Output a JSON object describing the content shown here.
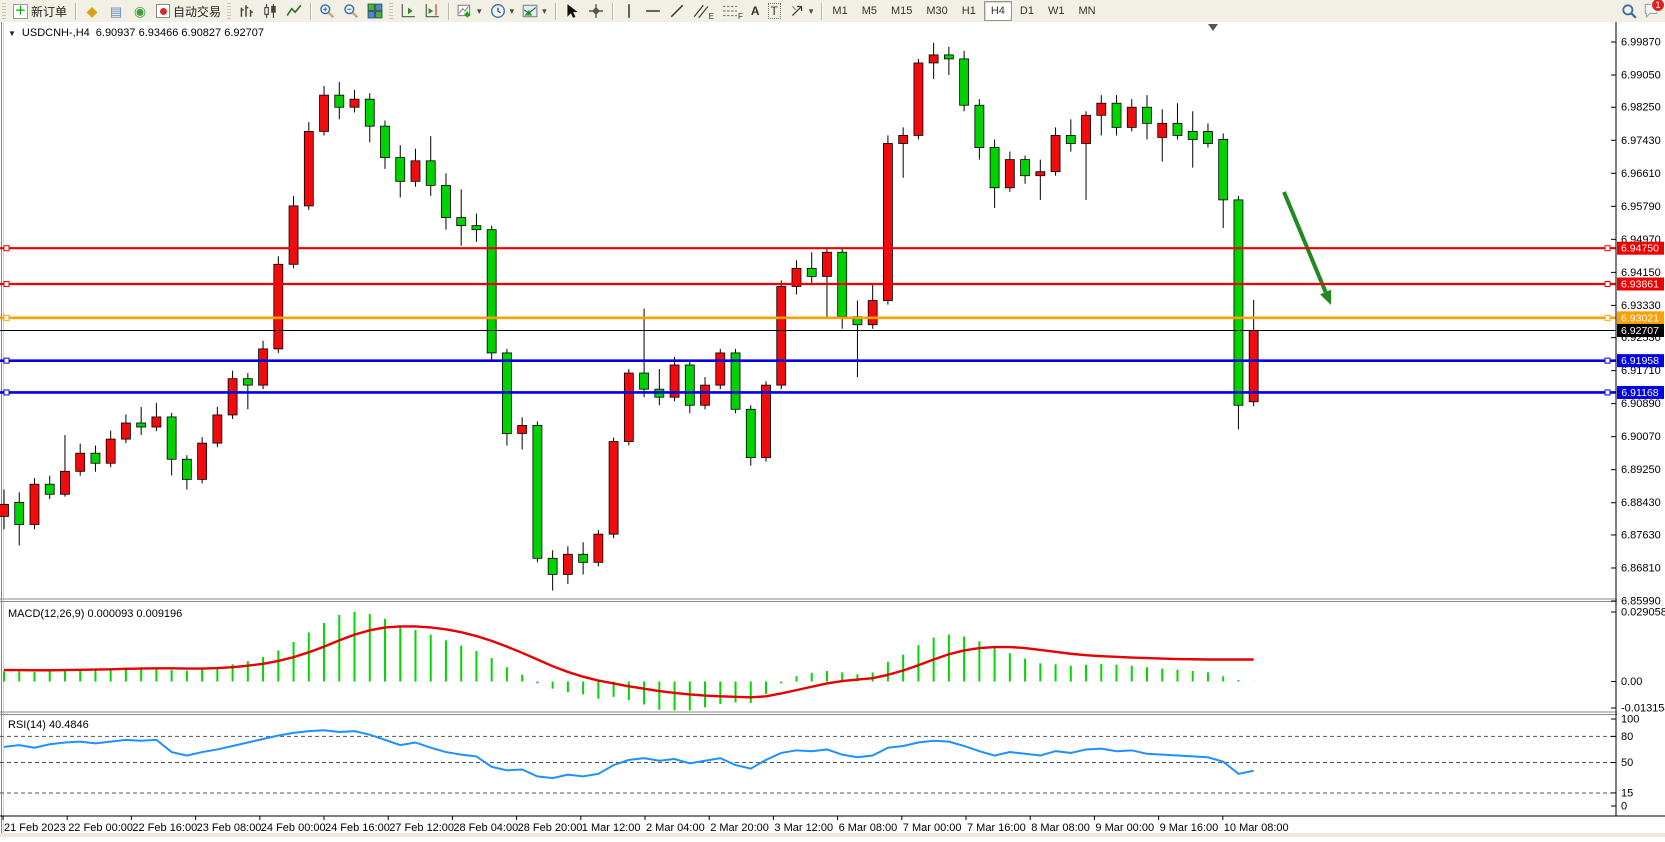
{
  "toolbar": {
    "new_order": "新订单",
    "autotrade": "自动交易",
    "tool_letters": {
      "channel": "E",
      "fibonacci": "F",
      "text": "A",
      "label": "T"
    },
    "timeframes": [
      "M1",
      "M5",
      "M15",
      "M30",
      "H1",
      "H4",
      "D1",
      "W1",
      "MN"
    ],
    "active_timeframe": "H4",
    "notification_count": "1"
  },
  "chart": {
    "collapse_marker": "▼",
    "symbol_period": "USDCNH-,H4",
    "ohlc": "6.90937 6.93466 6.90827 6.92707",
    "open": "6.90937",
    "high": "6.93466",
    "low": "6.90827",
    "close": "6.92707"
  },
  "indicators": {
    "macd_display": "MACD(12,26,9) 0.000093 0.009196",
    "rsi_display": "RSI(14) 40.4846"
  },
  "chart_data": {
    "type": "candlestick",
    "symbol": "USDCNH-",
    "timeframe": "H4",
    "colors": {
      "bull": "#f00c0c",
      "bear": "#00d200",
      "wick": "#000000",
      "macd_hist": "#00d800",
      "macd_signal": "#e60000",
      "rsi_line": "#1e90ff",
      "arrow": "#1f8a1f"
    },
    "price_range": {
      "max": 6.9987,
      "min": 6.8599
    },
    "price_ticks": [
      "6.99870",
      "6.99050",
      "6.98250",
      "6.97430",
      "6.96610",
      "6.95790",
      "6.94970",
      "6.94150",
      "6.93330",
      "6.92530",
      "6.91710",
      "6.90890",
      "6.90070",
      "6.89250",
      "6.88430",
      "6.87630",
      "6.86810",
      "6.85990"
    ],
    "time_labels": [
      "21 Feb 2023",
      "22 Feb 00:00",
      "22 Feb 16:00",
      "23 Feb 08:00",
      "24 Feb 00:00",
      "24 Feb 16:00",
      "27 Feb 12:00",
      "28 Feb 04:00",
      "28 Feb 20:00",
      "1 Mar 12:00",
      "2 Mar 04:00",
      "2 Mar 20:00",
      "3 Mar 12:00",
      "6 Mar 08:00",
      "7 Mar 00:00",
      "7 Mar 16:00",
      "8 Mar 08:00",
      "9 Mar 00:00",
      "9 Mar 16:00",
      "10 Mar 08:00"
    ],
    "hlines": [
      {
        "price": 6.9475,
        "label": "6.94750",
        "color": "#ee0000",
        "width": 2.2,
        "handles": true
      },
      {
        "price": 6.93861,
        "label": "6.93861",
        "color": "#ee0000",
        "width": 2.2,
        "handles": true
      },
      {
        "price": 6.93021,
        "label": "6.93021",
        "color": "#ffa000",
        "width": 2.6,
        "handles": true
      },
      {
        "price": 6.92707,
        "label": "6.92707",
        "color": "#000000",
        "width": 1,
        "handles": false,
        "is_current_price": true
      },
      {
        "price": 6.91958,
        "label": "6.91958",
        "color": "#0000e0",
        "width": 2.6,
        "handles": true
      },
      {
        "price": 6.91168,
        "label": "6.91168",
        "color": "#0000e0",
        "width": 2.6,
        "handles": true
      }
    ],
    "annotation_arrow": {
      "from": [
        1284,
        170
      ],
      "to": [
        1331,
        283
      ]
    },
    "candles": [
      [
        6.8809,
        6.8876,
        6.8777,
        6.8839
      ],
      [
        6.8844,
        6.8869,
        6.8737,
        6.8789
      ],
      [
        6.8789,
        6.8904,
        6.8777,
        6.8889
      ],
      [
        6.8889,
        6.891,
        6.8852,
        6.8864
      ],
      [
        6.8864,
        6.9011,
        6.8858,
        6.8921
      ],
      [
        6.8921,
        6.899,
        6.891,
        6.8966
      ],
      [
        6.8966,
        6.8985,
        6.892,
        6.8941
      ],
      [
        6.8941,
        6.9022,
        6.8931,
        6.9001
      ],
      [
        6.9001,
        6.9062,
        6.8991,
        6.9041
      ],
      [
        6.9041,
        6.9081,
        6.9011,
        6.9031
      ],
      [
        6.9031,
        6.9091,
        6.9021,
        6.9056
      ],
      [
        6.9056,
        6.9066,
        6.8911,
        6.8951
      ],
      [
        6.8951,
        6.8961,
        6.8876,
        6.8901
      ],
      [
        6.8901,
        6.9006,
        6.8891,
        6.8991
      ],
      [
        6.8991,
        6.9081,
        6.8981,
        6.9061
      ],
      [
        6.9061,
        6.9171,
        6.9051,
        6.9151
      ],
      [
        6.9151,
        6.9165,
        6.9075,
        6.9135
      ],
      [
        6.9135,
        6.9245,
        6.9125,
        6.9225
      ],
      [
        6.9225,
        6.9455,
        6.9215,
        6.9435
      ],
      [
        6.9435,
        6.9605,
        6.9425,
        6.958
      ],
      [
        6.958,
        6.9788,
        6.957,
        6.9765
      ],
      [
        6.9765,
        6.9878,
        6.9755,
        6.9855
      ],
      [
        6.9855,
        6.9888,
        6.9795,
        6.9825
      ],
      [
        6.9825,
        6.9868,
        6.9812,
        6.9845
      ],
      [
        6.9845,
        6.986,
        6.9738,
        6.9778
      ],
      [
        6.9778,
        6.9792,
        6.9672,
        6.97
      ],
      [
        6.97,
        6.9731,
        6.9601,
        6.9641
      ],
      [
        6.9641,
        6.9722,
        6.9628,
        6.9692
      ],
      [
        6.9692,
        6.9753,
        6.9605,
        6.9631
      ],
      [
        6.9631,
        6.9661,
        6.9521,
        6.9551
      ],
      [
        6.9551,
        6.9621,
        6.9481,
        6.9531
      ],
      [
        6.9531,
        6.9561,
        6.9491,
        6.9521
      ],
      [
        6.9521,
        6.9531,
        6.9195,
        6.9215
      ],
      [
        6.9215,
        6.9225,
        6.8985,
        6.9015
      ],
      [
        6.9015,
        6.9055,
        6.8975,
        6.9035
      ],
      [
        6.9035,
        6.9045,
        6.8695,
        6.8705
      ],
      [
        6.8705,
        6.8725,
        6.8625,
        6.8665
      ],
      [
        6.8665,
        6.8735,
        6.8641,
        6.8715
      ],
      [
        6.8715,
        6.8745,
        6.8665,
        6.8695
      ],
      [
        6.8695,
        6.8775,
        6.8685,
        6.8765
      ],
      [
        6.8765,
        6.9005,
        6.8755,
        6.8995
      ],
      [
        6.8995,
        6.9175,
        6.8985,
        6.9165
      ],
      [
        6.9165,
        6.9325,
        6.9105,
        6.9125
      ],
      [
        6.9125,
        6.9175,
        6.9085,
        6.9105
      ],
      [
        6.9105,
        6.9205,
        6.9095,
        6.9185
      ],
      [
        6.9185,
        6.9195,
        6.9065,
        6.9085
      ],
      [
        6.9085,
        6.9155,
        6.9075,
        6.9135
      ],
      [
        6.9135,
        6.9225,
        6.9125,
        6.9215
      ],
      [
        6.9215,
        6.9225,
        6.9065,
        6.9075
      ],
      [
        6.9075,
        6.9085,
        6.8935,
        6.8955
      ],
      [
        6.8955,
        6.9145,
        6.8945,
        6.9135
      ],
      [
        6.9135,
        6.9395,
        6.9125,
        6.938
      ],
      [
        6.938,
        6.9445,
        6.936,
        6.9425
      ],
      [
        6.9425,
        6.9465,
        6.9385,
        6.9405
      ],
      [
        6.9405,
        6.9475,
        6.9305,
        6.9465
      ],
      [
        6.9465,
        6.9475,
        6.9275,
        6.9305
      ],
      [
        6.9305,
        6.9345,
        6.9155,
        6.9285
      ],
      [
        6.9285,
        6.9385,
        6.9275,
        6.9345
      ],
      [
        6.9345,
        6.9755,
        6.9335,
        6.9735
      ],
      [
        6.9735,
        6.9775,
        6.965,
        6.9755
      ],
      [
        6.9755,
        6.9945,
        6.9745,
        6.9935
      ],
      [
        6.9935,
        6.9985,
        6.9895,
        6.9955
      ],
      [
        6.9955,
        6.9975,
        6.9905,
        6.9945
      ],
      [
        6.9945,
        6.9965,
        6.9815,
        6.983
      ],
      [
        6.983,
        6.9845,
        6.9695,
        6.9725
      ],
      [
        6.9725,
        6.9745,
        6.9575,
        6.9625
      ],
      [
        6.9625,
        6.9715,
        6.9615,
        6.9695
      ],
      [
        6.9695,
        6.9705,
        6.9635,
        6.9655
      ],
      [
        6.9655,
        6.9695,
        6.9595,
        6.9665
      ],
      [
        6.9665,
        6.9775,
        6.9655,
        6.9755
      ],
      [
        6.9755,
        6.9795,
        6.9715,
        6.9735
      ],
      [
        6.9735,
        6.9815,
        6.9595,
        6.9805
      ],
      [
        6.9805,
        6.9855,
        6.9755,
        6.9835
      ],
      [
        6.9835,
        6.9855,
        6.9755,
        6.9775
      ],
      [
        6.9775,
        6.9845,
        6.9765,
        6.9825
      ],
      [
        6.9825,
        6.9855,
        6.9745,
        6.9785
      ],
      [
        6.975,
        6.982,
        6.969,
        6.9785
      ],
      [
        6.9785,
        6.9835,
        6.9745,
        6.9755
      ],
      [
        6.9765,
        6.9815,
        6.9675,
        6.9745
      ],
      [
        6.9765,
        6.9785,
        6.9725,
        6.9735
      ],
      [
        6.9745,
        6.976,
        6.9525,
        6.9595
      ],
      [
        6.9595,
        6.9605,
        6.9025,
        6.9085
      ],
      [
        6.90937,
        6.93466,
        6.90827,
        6.92707
      ]
    ],
    "macd": {
      "label": "MACD(12,26,9)",
      "current_values": "0.000093 0.009196",
      "axis_labels": [
        {
          "text": "0.029058",
          "value": 0.029058
        },
        {
          "text": "0.00",
          "value": 0
        },
        {
          "text": "-0.013154",
          "value": -0.013154
        }
      ],
      "histogram": [
        0.0042,
        0.0046,
        0.004,
        0.0044,
        0.005,
        0.0052,
        0.005,
        0.0054,
        0.0058,
        0.006,
        0.0055,
        0.0048,
        0.0045,
        0.005,
        0.006,
        0.0072,
        0.0085,
        0.0102,
        0.013,
        0.0165,
        0.0205,
        0.0245,
        0.0278,
        0.0291,
        0.0282,
        0.0262,
        0.0235,
        0.0215,
        0.0196,
        0.0172,
        0.015,
        0.0128,
        0.0098,
        0.006,
        0.0028,
        -0.0008,
        -0.003,
        -0.0044,
        -0.0054,
        -0.0072,
        -0.0064,
        -0.0078,
        -0.0096,
        -0.0118,
        -0.0131,
        -0.0122,
        -0.0108,
        -0.0094,
        -0.0088,
        -0.009,
        -0.0052,
        -0.0008,
        0.0022,
        0.0036,
        0.0044,
        0.0038,
        0.003,
        0.0038,
        0.0082,
        0.0112,
        0.0152,
        0.0184,
        0.0196,
        0.0188,
        0.0168,
        0.014,
        0.0118,
        0.0096,
        0.0076,
        0.0072,
        0.0066,
        0.007,
        0.0074,
        0.007,
        0.0066,
        0.006,
        0.0054,
        0.0049,
        0.0044,
        0.0038,
        0.0022,
        0.0006,
        9.3e-05
      ],
      "signal": [
        0.0048,
        0.0048,
        0.0047,
        0.0047,
        0.0048,
        0.0049,
        0.005,
        0.0051,
        0.0053,
        0.0054,
        0.0055,
        0.0055,
        0.0054,
        0.0054,
        0.0056,
        0.006,
        0.0066,
        0.0074,
        0.0086,
        0.0102,
        0.0122,
        0.0146,
        0.0172,
        0.0196,
        0.0214,
        0.0226,
        0.023,
        0.023,
        0.0226,
        0.0218,
        0.0206,
        0.019,
        0.017,
        0.0146,
        0.012,
        0.0092,
        0.0064,
        0.004,
        0.002,
        0.0004,
        -0.0008,
        -0.002,
        -0.003,
        -0.004,
        -0.0048,
        -0.0054,
        -0.0059,
        -0.0062,
        -0.0064,
        -0.0066,
        -0.0062,
        -0.005,
        -0.0036,
        -0.0022,
        -0.0008,
        0.0002,
        0.0008,
        0.0014,
        0.0028,
        0.0046,
        0.0068,
        0.0092,
        0.0114,
        0.013,
        0.014,
        0.0144,
        0.0144,
        0.014,
        0.0132,
        0.0124,
        0.0116,
        0.011,
        0.0106,
        0.0103,
        0.01,
        0.0098,
        0.0096,
        0.0094,
        0.0093,
        0.0092,
        0.0092,
        0.0092,
        0.0092
      ]
    },
    "rsi": {
      "label": "RSI(14)",
      "current_value": "40.4846",
      "levels": [
        80,
        50,
        15
      ],
      "axis_labels": [
        {
          "text": "100",
          "value": 100
        },
        {
          "text": "80",
          "value": 80
        },
        {
          "text": "50",
          "value": 50
        },
        {
          "text": "15",
          "value": 15
        },
        {
          "text": "0",
          "value": 0
        }
      ],
      "values": [
        68,
        70,
        67,
        71,
        73,
        74,
        72,
        74,
        76,
        75,
        76,
        62,
        58,
        62,
        65,
        69,
        73,
        77,
        81,
        84,
        86,
        87,
        85,
        86,
        82,
        76,
        70,
        73,
        67,
        62,
        59,
        57,
        45,
        41,
        42,
        34,
        32,
        36,
        34,
        37,
        47,
        53,
        55,
        52,
        54,
        49,
        52,
        55,
        47,
        43,
        53,
        61,
        64,
        63,
        65,
        59,
        56,
        58,
        67,
        69,
        73,
        75,
        74,
        69,
        63,
        58,
        62,
        60,
        58,
        63,
        61,
        65,
        66,
        63,
        64,
        60,
        59,
        58,
        57,
        56,
        51,
        37,
        40.4846
      ]
    }
  }
}
